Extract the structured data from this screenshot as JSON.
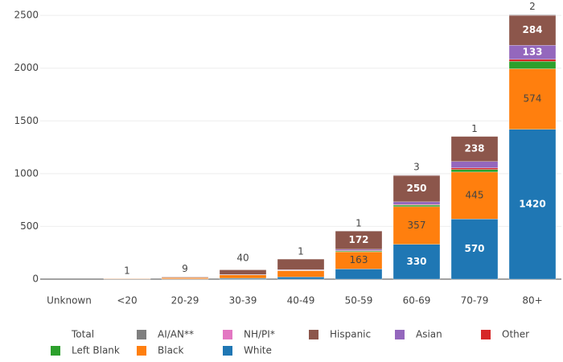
{
  "chart_data": {
    "type": "stacked_bar",
    "categories": [
      "Unknown",
      "<20",
      "20-29",
      "30-39",
      "40-49",
      "50-59",
      "60-69",
      "70-79",
      "80+"
    ],
    "series": [
      {
        "name": "White",
        "color": "#1f77b4",
        "values": [
          0,
          1,
          3,
          8,
          20,
          96,
          330,
          570,
          1420
        ]
      },
      {
        "name": "Black",
        "color": "#ff7f0e",
        "values": [
          0,
          4,
          10,
          32,
          60,
          163,
          357,
          445,
          574
        ]
      },
      {
        "name": "Left Blank",
        "color": "#2ca02c",
        "values": [
          0,
          0,
          0,
          0,
          3,
          8,
          15,
          25,
          70
        ]
      },
      {
        "name": "Other",
        "color": "#d62728",
        "values": [
          0,
          0,
          0,
          0,
          2,
          4,
          6,
          15,
          20
        ]
      },
      {
        "name": "Asian",
        "color": "#9467bd",
        "values": [
          0,
          0,
          0,
          3,
          5,
          12,
          25,
          60,
          133
        ]
      },
      {
        "name": "Hispanic",
        "color": "#8c564b",
        "values": [
          0,
          1,
          6,
          45,
          100,
          172,
          250,
          238,
          284
        ]
      },
      {
        "name": "NH/PI*",
        "color": "#e377c2",
        "values": [
          0,
          0,
          0,
          0,
          0,
          0,
          3,
          0,
          3
        ]
      },
      {
        "name": "AI/AN**",
        "color": "#7f7f7f",
        "values": [
          0,
          0,
          0,
          0,
          0,
          2,
          4,
          0,
          5
        ]
      },
      {
        "name": "Total",
        "color": "none",
        "values": [
          null,
          1,
          9,
          40,
          1,
          1,
          3,
          1,
          2
        ]
      }
    ],
    "ylim": [
      0,
      2570
    ],
    "yticks": [
      0,
      500,
      1000,
      1500,
      2000,
      2500
    ],
    "grid": true
  }
}
